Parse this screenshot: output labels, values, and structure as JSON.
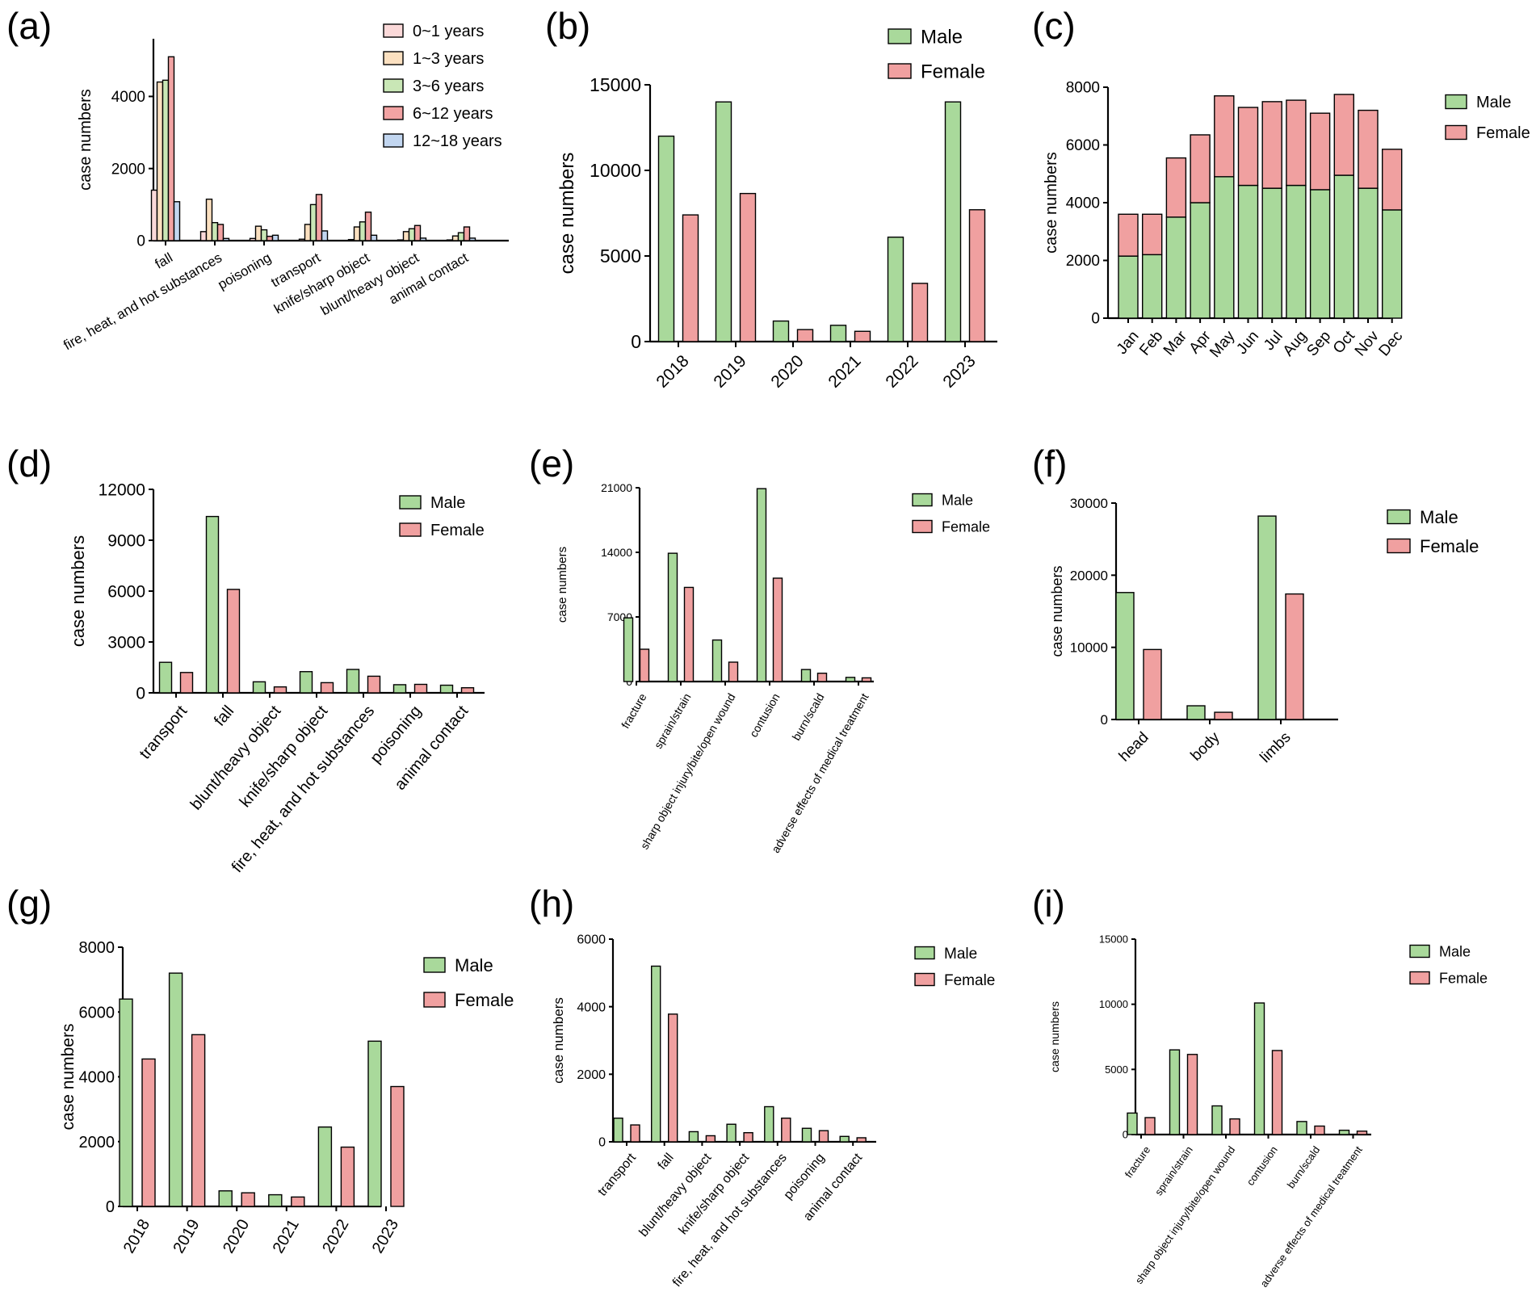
{
  "figure": {
    "ylabel_text": "case numbers"
  },
  "colors": {
    "male": "#a9d99b",
    "female": "#f0a0a0",
    "age_0_1": "#fbd9d9",
    "age_1_3": "#fbe0c0",
    "age_3_6": "#c9e7b6",
    "age_6_12": "#f2a3a3",
    "age_12_18": "#c2d6f0"
  },
  "chart_data": [
    {
      "panel": "(a)",
      "type": "bar",
      "ylabel": "case numbers",
      "ylim": [
        0,
        5600
      ],
      "yticks": [
        0,
        2000,
        4000
      ],
      "categories": [
        "fall",
        "fire, heat, and hot substances",
        "poisoning",
        "transport",
        "knife/sharp object",
        "blunt/heavy object",
        "animal contact"
      ],
      "series": [
        {
          "name": "0~1 years",
          "values": [
            1400,
            250,
            60,
            40,
            30,
            20,
            20
          ]
        },
        {
          "name": "1~3 years",
          "values": [
            4400,
            1150,
            400,
            450,
            380,
            250,
            130
          ]
        },
        {
          "name": "3~6 years",
          "values": [
            4450,
            500,
            300,
            1000,
            520,
            330,
            220
          ]
        },
        {
          "name": "6~12 years",
          "values": [
            5100,
            450,
            120,
            1280,
            790,
            420,
            380
          ]
        },
        {
          "name": "12~18 years",
          "values": [
            1080,
            60,
            150,
            270,
            150,
            70,
            70
          ]
        }
      ]
    },
    {
      "panel": "(b)",
      "type": "bar",
      "ylabel": "case numbers",
      "ylim": [
        0,
        15000
      ],
      "yticks": [
        0,
        5000,
        10000,
        15000
      ],
      "categories": [
        "2018",
        "2019",
        "2020",
        "2021",
        "2022",
        "2023"
      ],
      "series": [
        {
          "name": "Male",
          "values": [
            12000,
            14000,
            1200,
            950,
            6100,
            14000
          ]
        },
        {
          "name": "Female",
          "values": [
            7400,
            8650,
            700,
            600,
            3400,
            7700
          ]
        }
      ]
    },
    {
      "panel": "(c)",
      "type": "bar",
      "stacked": true,
      "ylabel": "case numbers",
      "ylim": [
        0,
        8000
      ],
      "yticks": [
        0,
        2000,
        4000,
        6000,
        8000
      ],
      "categories": [
        "Jan",
        "Feb",
        "Mar",
        "Apr",
        "May",
        "Jun",
        "Jul",
        "Aug",
        "Sep",
        "Oct",
        "Nov",
        "Dec"
      ],
      "series": [
        {
          "name": "Male",
          "values": [
            2150,
            2200,
            3500,
            4000,
            4900,
            4600,
            4500,
            4600,
            4450,
            4950,
            4500,
            3750
          ]
        },
        {
          "name": "Female",
          "values": [
            1450,
            1400,
            2050,
            2350,
            2800,
            2700,
            3000,
            2950,
            2650,
            2800,
            2700,
            2100
          ]
        }
      ]
    },
    {
      "panel": "(d)",
      "type": "bar",
      "ylabel": "case numbers",
      "ylim": [
        0,
        12000
      ],
      "yticks": [
        0,
        3000,
        6000,
        9000,
        12000
      ],
      "categories": [
        "transport",
        "fall",
        "blunt/heavy object",
        "knife/sharp object",
        "fire, heat, and hot substances",
        "poisoning",
        "animal contact"
      ],
      "series": [
        {
          "name": "Male",
          "values": [
            1800,
            10400,
            650,
            1250,
            1380,
            480,
            450
          ]
        },
        {
          "name": "Female",
          "values": [
            1200,
            6100,
            350,
            600,
            980,
            500,
            300
          ]
        }
      ]
    },
    {
      "panel": "(e)",
      "type": "bar",
      "ylabel": "case numbers",
      "ylim": [
        0,
        21000
      ],
      "yticks": [
        0,
        7000,
        14000,
        21000
      ],
      "categories": [
        "fracture",
        "sprain/strain",
        "sharp object injury/bite/open wound",
        "contusion",
        "burn/scald",
        "adverse effects of medical treatment"
      ],
      "series": [
        {
          "name": "Male",
          "values": [
            6900,
            13900,
            4500,
            20900,
            1300,
            450
          ]
        },
        {
          "name": "Female",
          "values": [
            3500,
            10200,
            2100,
            11200,
            900,
            400
          ]
        }
      ]
    },
    {
      "panel": "(f)",
      "type": "bar",
      "ylabel": "case numbers",
      "ylim": [
        0,
        30000
      ],
      "yticks": [
        0,
        10000,
        20000,
        30000
      ],
      "categories": [
        "head",
        "body",
        "limbs"
      ],
      "series": [
        {
          "name": "Male",
          "values": [
            17600,
            1900,
            28200
          ]
        },
        {
          "name": "Female",
          "values": [
            9700,
            1000,
            17400
          ]
        }
      ]
    },
    {
      "panel": "(g)",
      "type": "bar",
      "ylabel": "case numbers",
      "ylim": [
        0,
        8000
      ],
      "yticks": [
        0,
        2000,
        4000,
        6000,
        8000
      ],
      "categories": [
        "2018",
        "2019",
        "2020",
        "2021",
        "2022",
        "2023"
      ],
      "series": [
        {
          "name": "Male",
          "values": [
            6400,
            7200,
            480,
            360,
            2450,
            5100
          ]
        },
        {
          "name": "Female",
          "values": [
            4550,
            5300,
            420,
            290,
            1830,
            3700
          ]
        }
      ]
    },
    {
      "panel": "(h)",
      "type": "bar",
      "ylabel": "case numbers",
      "ylim": [
        0,
        6000
      ],
      "yticks": [
        0,
        2000,
        4000,
        6000
      ],
      "categories": [
        "transport",
        "fall",
        "blunt/heavy object",
        "knife/sharp object",
        "fire, heat, and hot substances",
        "poisoning",
        "animal contact"
      ],
      "series": [
        {
          "name": "Male",
          "values": [
            700,
            5200,
            300,
            520,
            1040,
            400,
            160
          ]
        },
        {
          "name": "Female",
          "values": [
            500,
            3780,
            180,
            270,
            700,
            330,
            120
          ]
        }
      ]
    },
    {
      "panel": "(i)",
      "type": "bar",
      "ylabel": "case numbers",
      "ylim": [
        0,
        15000
      ],
      "yticks": [
        0,
        5000,
        10000,
        15000
      ],
      "categories": [
        "fracture",
        "sprain/strain",
        "sharp object injury/bite/open wound",
        "contusion",
        "burn/scald",
        "adverse effects of medical treatment"
      ],
      "series": [
        {
          "name": "Male",
          "values": [
            1650,
            6500,
            2200,
            10100,
            1000,
            330
          ]
        },
        {
          "name": "Female",
          "values": [
            1300,
            6150,
            1200,
            6450,
            650,
            260
          ]
        }
      ]
    }
  ]
}
